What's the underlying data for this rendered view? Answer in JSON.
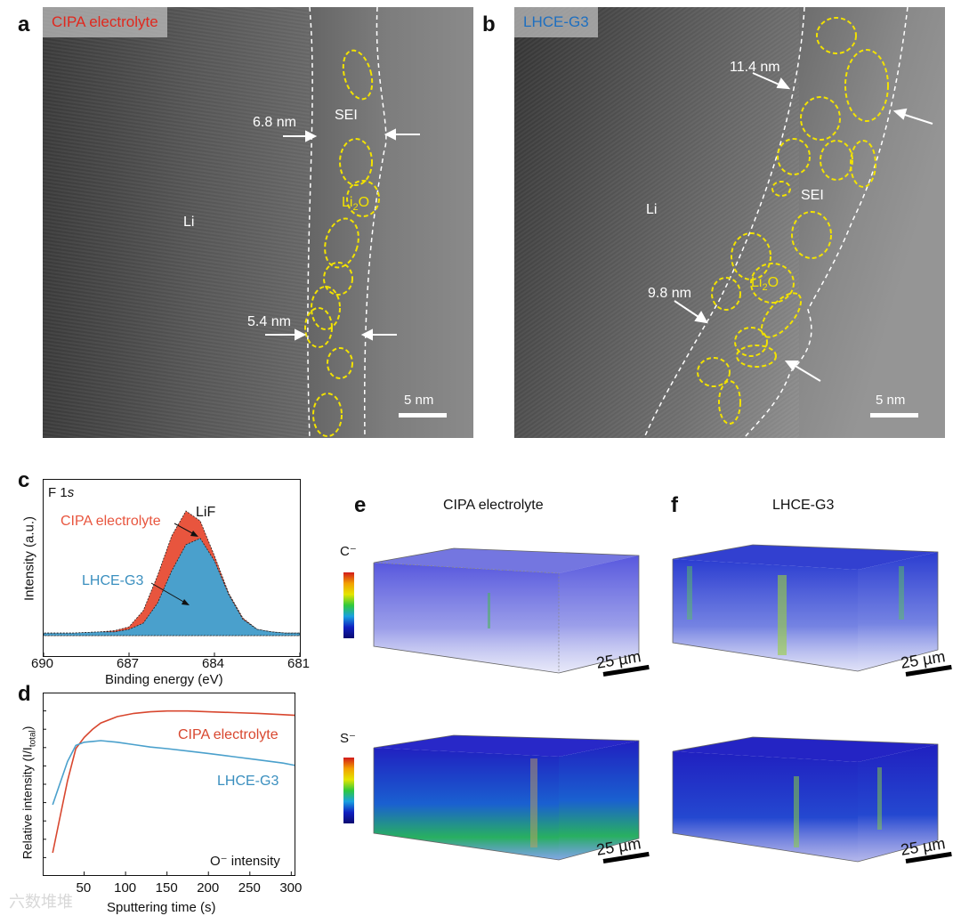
{
  "panels": {
    "a": {
      "label": "a",
      "tag": "CIPA electrolyte",
      "tag_color": "#e0281e",
      "li": "Li",
      "sei": "SEI",
      "li2o_base": "Li",
      "li2o_sub": "2",
      "li2o_tail": "O",
      "thickness_top": "6.8 nm",
      "thickness_bottom": "5.4 nm",
      "scale": "5 nm"
    },
    "b": {
      "label": "b",
      "tag": "LHCE-G3",
      "tag_color": "#1e6fc0",
      "li": "Li",
      "sei": "SEI",
      "li2o_base": "Li",
      "li2o_sub": "2",
      "li2o_tail": "O",
      "thickness_top": "11.4 nm",
      "thickness_bottom": "9.8 nm",
      "scale": "5 nm"
    },
    "c": {
      "label": "c",
      "title_base": "F 1",
      "title_italic": "s",
      "peak_label": "LiF",
      "ylabel": "Intensity (a.u.)"
    },
    "d": {
      "label": "d",
      "annotation": "O⁻ intensity"
    },
    "e": {
      "label": "e",
      "title": "CIPA electrolyte",
      "ion_top": "C⁻",
      "ion_bottom": "S⁻",
      "scale_top": "25 µm",
      "scale_bottom": "25 µm"
    },
    "f": {
      "label": "f",
      "title": "LHCE-G3",
      "scale_top": "25 µm",
      "scale_bottom": "25 µm"
    }
  },
  "watermark": "六数堆堆",
  "colors": {
    "cipa": "#e8553e",
    "lhce": "#4aa0cc",
    "sei_outline": "#f2e200"
  },
  "chart_data": [
    {
      "panel": "c",
      "type": "area",
      "title": "F 1s",
      "xlabel": "Binding energy (eV)",
      "ylabel": "Intensity (a.u.)",
      "xlim": [
        690,
        681
      ],
      "x_reversed": true,
      "x_ticks": [
        "690",
        "687",
        "684",
        "681"
      ],
      "annotations": [
        "LiF"
      ],
      "series": [
        {
          "name": "CIPA electrolyte",
          "x": [
            690,
            689,
            688,
            687.5,
            687,
            686.5,
            686,
            685.5,
            685,
            684.5,
            684,
            683.5,
            683,
            682.5,
            682,
            681.5,
            681
          ],
          "values": [
            0.02,
            0.02,
            0.03,
            0.04,
            0.07,
            0.2,
            0.48,
            0.8,
            1.0,
            0.92,
            0.64,
            0.34,
            0.14,
            0.05,
            0.03,
            0.02,
            0.02
          ]
        },
        {
          "name": "LHCE-G3",
          "x": [
            690,
            689,
            688,
            687.5,
            687,
            686.5,
            686,
            685.5,
            685,
            684.5,
            684,
            683.5,
            683,
            682.5,
            682,
            681.5,
            681
          ],
          "values": [
            0.02,
            0.02,
            0.03,
            0.03,
            0.05,
            0.1,
            0.26,
            0.52,
            0.73,
            0.78,
            0.6,
            0.33,
            0.13,
            0.05,
            0.03,
            0.02,
            0.02
          ]
        }
      ]
    },
    {
      "panel": "d",
      "type": "line",
      "xlabel": "Sputtering time (s)",
      "ylabel": "Relative intensity (I/I",
      "ylabel_sub": "total",
      "ylabel_tail": ")",
      "xlim": [
        0,
        305
      ],
      "x_ticks": [
        50,
        100,
        150,
        200,
        250,
        300
      ],
      "annotations": [
        "O⁻ intensity"
      ],
      "series": [
        {
          "name": "CIPA electrolyte",
          "x": [
            12,
            20,
            30,
            40,
            50,
            60,
            70,
            90,
            110,
            130,
            150,
            175,
            200,
            230,
            260,
            290,
            305
          ],
          "values": [
            0.1,
            0.3,
            0.55,
            0.75,
            0.82,
            0.87,
            0.91,
            0.95,
            0.97,
            0.98,
            0.985,
            0.985,
            0.98,
            0.975,
            0.97,
            0.962,
            0.958
          ]
        },
        {
          "name": "LHCE-G3",
          "x": [
            12,
            20,
            30,
            40,
            50,
            60,
            70,
            90,
            110,
            130,
            150,
            175,
            200,
            230,
            260,
            290,
            305
          ],
          "values": [
            0.4,
            0.52,
            0.67,
            0.77,
            0.79,
            0.795,
            0.8,
            0.79,
            0.775,
            0.76,
            0.75,
            0.735,
            0.72,
            0.7,
            0.68,
            0.66,
            0.645
          ]
        }
      ]
    }
  ]
}
